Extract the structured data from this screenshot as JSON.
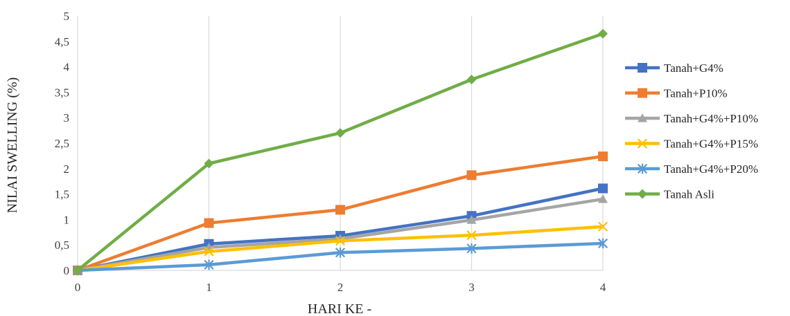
{
  "chart_data": {
    "type": "line",
    "title": "",
    "xlabel": "HARI KE -",
    "ylabel": "NILAI SWELLING (%)",
    "x": [
      0,
      1,
      2,
      3,
      4
    ],
    "x_tick_labels": [
      "0",
      "1",
      "2",
      "3",
      "4"
    ],
    "ylim": [
      0,
      5
    ],
    "y_tick_labels": [
      "0",
      "0,5",
      "1",
      "1,5",
      "2",
      "2,5",
      "3",
      "3,5",
      "4",
      "4,5",
      "5"
    ],
    "grid": "vertical",
    "legend_position": "right",
    "series": [
      {
        "name": "Tanah+G4%",
        "color": "#4472C4",
        "marker": "square",
        "values": [
          0,
          0.52,
          0.68,
          1.07,
          1.61
        ]
      },
      {
        "name": "Tanah+P10%",
        "color": "#ED7D31",
        "marker": "square",
        "values": [
          0,
          0.93,
          1.19,
          1.87,
          2.24
        ]
      },
      {
        "name": "Tanah+G4%+P10%",
        "color": "#A5A5A5",
        "marker": "triangle",
        "values": [
          0,
          0.45,
          0.62,
          0.99,
          1.4
        ]
      },
      {
        "name": "Tanah+G4%+P15%",
        "color": "#FFC000",
        "marker": "x",
        "values": [
          0,
          0.37,
          0.58,
          0.69,
          0.86
        ]
      },
      {
        "name": "Tanah+G4%+P20%",
        "color": "#5B9BD5",
        "marker": "star",
        "values": [
          0,
          0.11,
          0.35,
          0.43,
          0.53
        ]
      },
      {
        "name": "Tanah Asli",
        "color": "#70AD47",
        "marker": "diamond",
        "values": [
          0,
          2.1,
          2.7,
          3.75,
          4.65
        ]
      }
    ]
  }
}
